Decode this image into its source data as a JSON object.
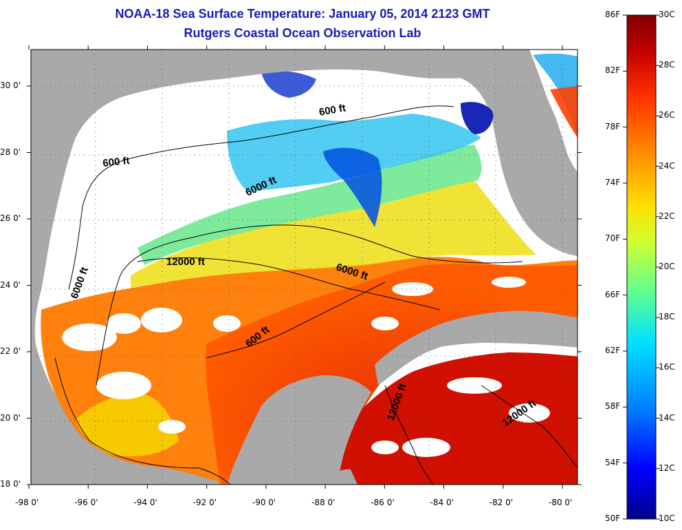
{
  "title": {
    "line1": "NOAA-18 Sea Surface Temperature:  January 05, 2014 2123 GMT",
    "line2": "Rutgers Coastal Ocean Observation Lab"
  },
  "colors": {
    "land": "#a9a9a9",
    "cloud": "#ffffff",
    "scale": [
      "#00008b",
      "#0000ff",
      "#0080ff",
      "#00e0ff",
      "#60ff90",
      "#d0ff30",
      "#ffe000",
      "#ff9000",
      "#ff3000",
      "#c00000",
      "#800000"
    ]
  },
  "x_axis": {
    "labels": [
      "-98 0'",
      "-96 0'",
      "-94 0'",
      "-92 0'",
      "-90 0'",
      "-88 0'",
      "-86 0'",
      "-84 0'",
      "-82 0'",
      "-80 0'"
    ]
  },
  "y_axis": {
    "labels": [
      "30 0'",
      "28 0'",
      "26 0'",
      "24 0'",
      "22 0'",
      "20 0'",
      "18 0'"
    ]
  },
  "contours": [
    {
      "label": "600 ft"
    },
    {
      "label": "600 ft"
    },
    {
      "label": "6000 ft"
    },
    {
      "label": "12000 ft"
    },
    {
      "label": "6000 ft"
    },
    {
      "label": "6000 ft"
    },
    {
      "label": "600 ft"
    },
    {
      "label": "12000 ft"
    },
    {
      "label": "12000 ft"
    }
  ],
  "colorbar": {
    "fahrenheit": [
      "86F",
      "82F",
      "78F",
      "74F",
      "70F",
      "66F",
      "62F",
      "58F",
      "54F",
      "50F"
    ],
    "celsius": [
      "30C",
      "28C",
      "26C",
      "24C",
      "22C",
      "20C",
      "18C",
      "16C",
      "14C",
      "12C",
      "10C"
    ]
  }
}
